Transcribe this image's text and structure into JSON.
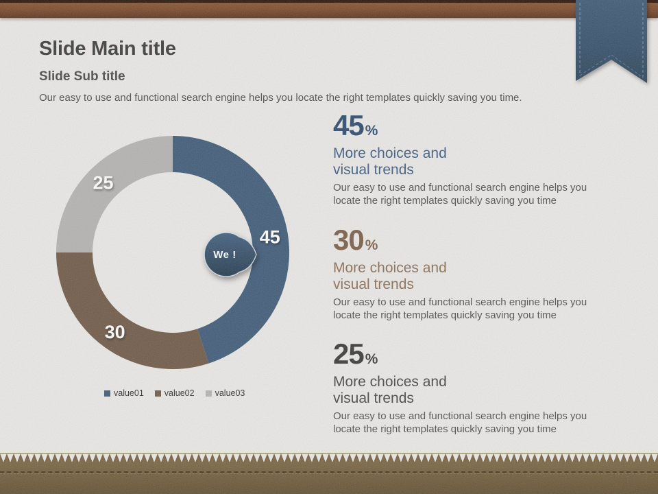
{
  "slide": {
    "title": "Slide Main title",
    "subtitle": "Slide Sub title",
    "description": "Our easy to use and functional search engine helps you locate the right templates quickly saving you time."
  },
  "chart_data": {
    "type": "pie",
    "subtype": "donut",
    "categories": [
      "value01",
      "value02",
      "value03"
    ],
    "values": [
      45,
      30,
      25
    ],
    "colors": [
      "#3e5a77",
      "#6f5946",
      "#b4b3b1"
    ],
    "data_labels": [
      "45",
      "30",
      "25"
    ],
    "annotation": "We !",
    "legend_position": "bottom",
    "start_angle_deg": 0,
    "direction": "clockwise",
    "hole_ratio": 0.69
  },
  "stats": [
    {
      "value": "45",
      "unit": "%",
      "number_color": "#2c4a70",
      "heading_color": "#3f5c80",
      "heading_line1": "More choices and",
      "heading_line2": "visual trends",
      "body": "Our easy to use and functional search engine helps you locate the right templates quickly saving you time"
    },
    {
      "value": "30",
      "unit": "%",
      "number_color": "#7a5e47",
      "heading_color": "#8a6e55",
      "heading_line1": "More choices and",
      "heading_line2": "visual trends",
      "body": "Our easy to use and functional search engine helps you locate the right templates quickly saving you time"
    },
    {
      "value": "25",
      "unit": "%",
      "number_color": "#3a3a3a",
      "heading_color": "#464646",
      "heading_line1": "More choices and",
      "heading_line2": "visual trends",
      "body": "Our easy to use and functional search engine helps you locate the right templates quickly saving you time"
    }
  ],
  "theme": {
    "paper": "#eae9e6",
    "top_bar_brown": "#7a482a",
    "ribbon_navy": "#32506c",
    "leather_brown": "#725d3d"
  }
}
